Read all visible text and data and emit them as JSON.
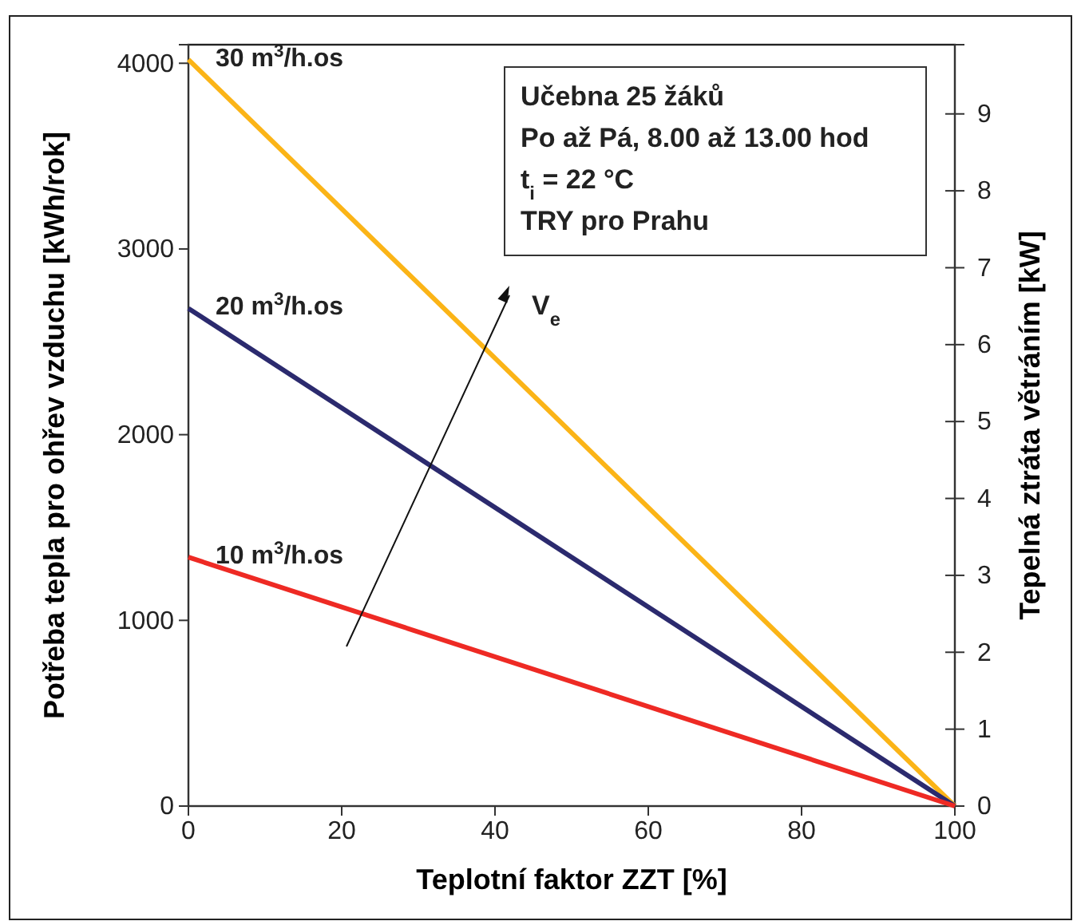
{
  "chart_data": {
    "type": "line",
    "xlabel": "Teplotní faktor ZZT [%]",
    "ylabel": "Potřeba tepla pro ohřev vzduchu [kWh/rok]",
    "y2label": "Tepelná ztráta větráním [kW]",
    "x": [
      0,
      100
    ],
    "series": [
      {
        "name": "30 m$^{3}$/h.os",
        "color": "#fbb417",
        "values": [
          4020,
          0
        ]
      },
      {
        "name": "20 m$^{3}$/h.os",
        "color": "#2b2a6e",
        "values": [
          2680,
          0
        ]
      },
      {
        "name": "10 m$^{3}$/h.os",
        "color": "#ee2a24",
        "values": [
          1340,
          0
        ]
      }
    ],
    "xlim": [
      0,
      100
    ],
    "xticks": [
      0,
      20,
      40,
      60,
      80,
      100
    ],
    "ylim": [
      0,
      4100
    ],
    "yticks": [
      0,
      1000,
      2000,
      3000,
      4000
    ],
    "y2lim": [
      0,
      9.9
    ],
    "y2ticks": [
      0,
      1,
      2,
      3,
      4,
      5,
      6,
      7,
      8,
      9
    ],
    "annotations": [
      "Učebna 25 žáků",
      "Po až Pá, 8.00 až 13.00 hod",
      "t$_{i}$ = 22 °C",
      "TRY pro Prahu",
      "V$_{e}$"
    ],
    "grid": false,
    "legend": false,
    "marker": "none",
    "line_style": "solid"
  }
}
